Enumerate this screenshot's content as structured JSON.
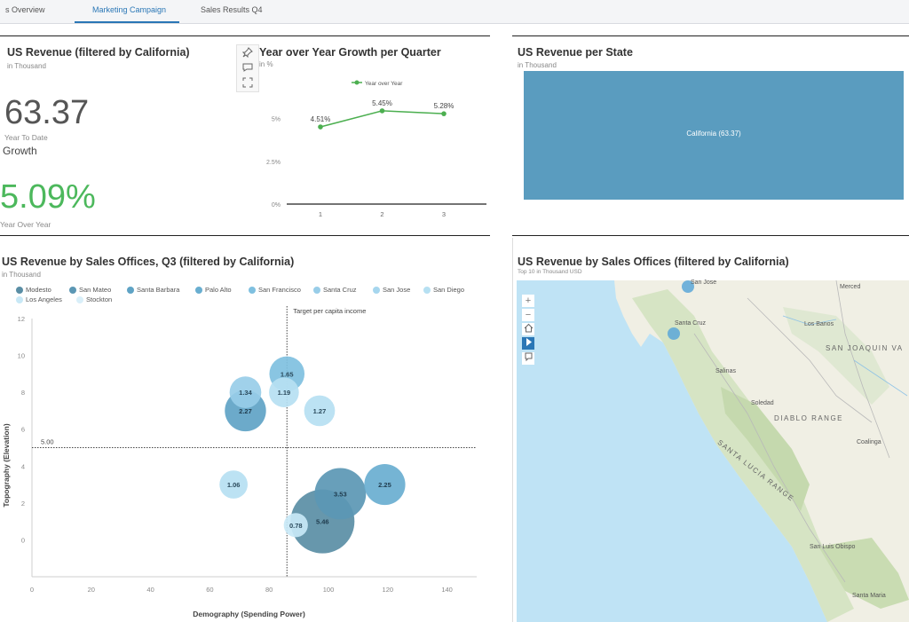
{
  "tabs": [
    {
      "label": "s Overview"
    },
    {
      "label": "Marketing Campaign"
    },
    {
      "label": "Sales Results Q4"
    }
  ],
  "revenue_panel": {
    "title": "US Revenue (filtered by California)",
    "subtitle": "in Thousand",
    "value": "63.37",
    "value_label": "Year To Date",
    "growth_heading": "Growth",
    "growth_value": "5.09%",
    "growth_label": "Year Over Year"
  },
  "yoy_panel": {
    "title": "Year over Year Growth per Quarter",
    "unit": "in %",
    "tools": [
      "pin-icon",
      "comment-icon",
      "expand-icon"
    ]
  },
  "state_panel": {
    "title": "US Revenue per State",
    "subtitle": "in Thousand",
    "bar_label": "California (63.37)",
    "bar_color": "#5a9cbf"
  },
  "offices_panel": {
    "title": "US Revenue by Sales Offices, Q3 (filtered by California)",
    "subtitle": "in Thousand",
    "target_label": "Target per capita income",
    "threshold_label": "5.00"
  },
  "map_panel": {
    "title": "US Revenue by Sales Offices (filtered by California)",
    "subtitle": "Top 10 in Thousand USD",
    "controls": [
      "+",
      "−",
      "home-icon",
      "select-icon",
      "bookmark-icon"
    ],
    "labels": [
      "San Jose",
      "Santa Cruz",
      "Merced",
      "Los Banos",
      "SAN JOAQUIN VA",
      "Salinas",
      "Soledad",
      "DIABLO RANGE",
      "SANTA LUCIA RANGE",
      "Coalinga",
      "San Luis Obispo",
      "Santa Maria"
    ]
  },
  "chart_data": [
    {
      "type": "line",
      "title": "Year over Year Growth per Quarter",
      "ylabel": "in %",
      "x": [
        1,
        2,
        3
      ],
      "y_ticks": [
        "0%",
        "2.5%",
        "5%"
      ],
      "ylim": [
        0,
        7
      ],
      "series": [
        {
          "name": "Year over Year",
          "values": [
            4.51,
            5.45,
            5.28
          ],
          "labels": [
            "4.51%",
            "5.45%",
            "5.28%"
          ],
          "color": "#4caf50"
        }
      ],
      "legend": "top"
    },
    {
      "type": "scatter",
      "title": "US Revenue by Sales Offices, Q3 (filtered by California)",
      "xlabel": "Demography (Spending Power)",
      "ylabel": "Topography (Elevation)",
      "xlim": [
        0,
        150
      ],
      "ylim": [
        -2,
        12
      ],
      "x_ticks": [
        0,
        20,
        40,
        60,
        80,
        100,
        120,
        140
      ],
      "y_ticks": [
        0,
        2,
        4,
        6,
        8,
        10,
        12
      ],
      "threshold_y": 5,
      "target_x": 86,
      "legend": "top",
      "series": [
        {
          "name": "Modesto",
          "color": "#5a8ea5"
        },
        {
          "name": "San Mateo",
          "color": "#5b97b4"
        },
        {
          "name": "Santa Barbara",
          "color": "#5fa3c5"
        },
        {
          "name": "Palo Alto",
          "color": "#69aed0"
        },
        {
          "name": "San Francisco",
          "color": "#7fc0e0"
        },
        {
          "name": "Santa Cruz",
          "color": "#98cde8"
        },
        {
          "name": "San Jose",
          "color": "#a6d6ee"
        },
        {
          "name": "San Diego",
          "color": "#b6e0f2"
        },
        {
          "name": "Los Angeles",
          "color": "#c8e8f6"
        },
        {
          "name": "Stockton",
          "color": "#d9eff9"
        }
      ],
      "points": [
        {
          "x": 72,
          "y": 7,
          "value": 2.27,
          "label": "2.27",
          "color": "#5fa3c5"
        },
        {
          "x": 72,
          "y": 8,
          "value": 1.34,
          "label": "1.34",
          "color": "#98cde8"
        },
        {
          "x": 86,
          "y": 9,
          "value": 1.65,
          "label": "1.65",
          "color": "#7fc0e0"
        },
        {
          "x": 85,
          "y": 8,
          "value": 1.19,
          "label": "1.19",
          "color": "#b6e0f2"
        },
        {
          "x": 97,
          "y": 7,
          "value": 1.27,
          "label": "1.27",
          "color": "#b6e0f2"
        },
        {
          "x": 68,
          "y": 3,
          "value": 1.06,
          "label": "1.06",
          "color": "#b6e0f2"
        },
        {
          "x": 104,
          "y": 2.5,
          "value": 3.53,
          "label": "3.53",
          "color": "#5b97b4"
        },
        {
          "x": 119,
          "y": 3,
          "value": 2.25,
          "label": "2.25",
          "color": "#69aed0"
        },
        {
          "x": 98,
          "y": 1,
          "value": 5.46,
          "label": "5.46",
          "color": "#5a8ea5"
        },
        {
          "x": 89,
          "y": 0.8,
          "value": 0.78,
          "label": "0.78",
          "color": "#c8e8f6"
        }
      ]
    }
  ]
}
